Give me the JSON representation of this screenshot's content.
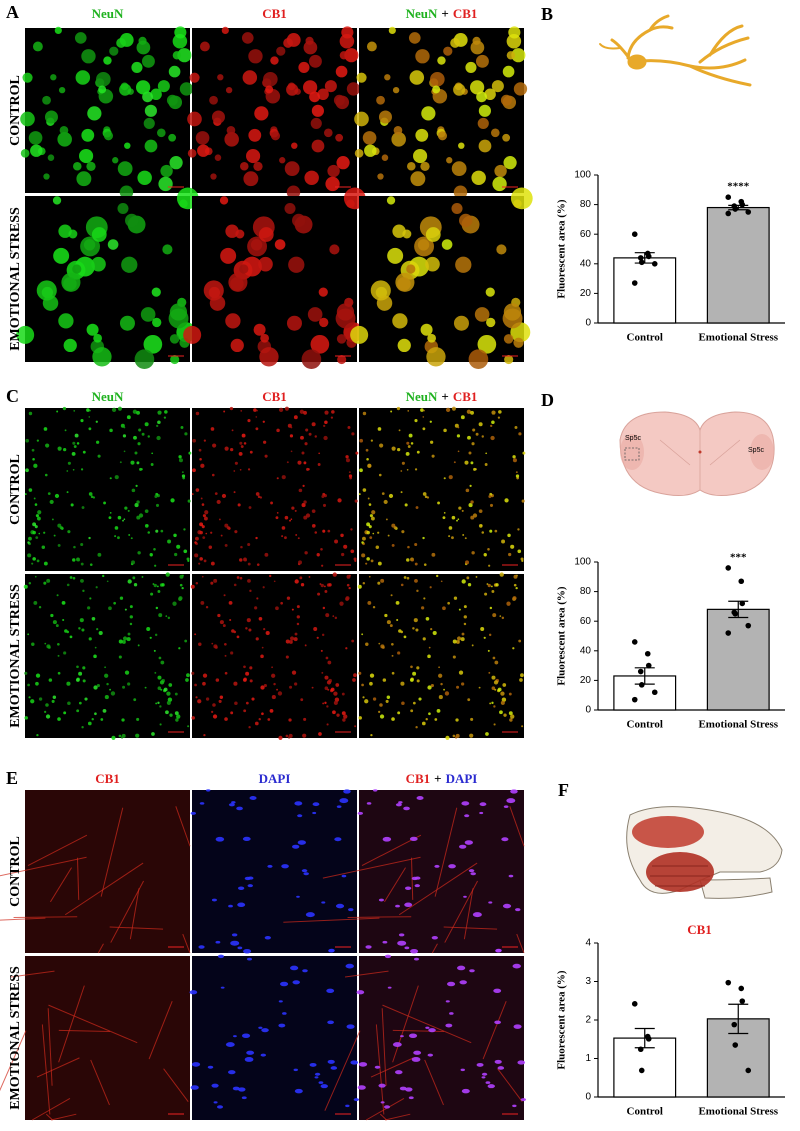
{
  "panel_labels": [
    "A",
    "B",
    "C",
    "D",
    "E",
    "F"
  ],
  "rows": [
    "CONTROL",
    "EMOTIONAL STRESS"
  ],
  "columns_neuron": [
    "NeuN",
    "CB1"
  ],
  "columns_muscle": [
    "CB1",
    "DAPI"
  ],
  "merge_sign": "+",
  "diagram_labels": [
    "Sp5c",
    "Sp5c"
  ],
  "chart_data": [
    {
      "type": "bar",
      "ylabel": "Fluorescent area (%)",
      "categories": [
        "Control",
        "Emotional Stress"
      ],
      "values": [
        44,
        78
      ],
      "errors": [
        3.5,
        1.5
      ],
      "points": [
        [
          60,
          47,
          45,
          44,
          41,
          40,
          27
        ],
        [
          85,
          82,
          80,
          79,
          77,
          75,
          74
        ]
      ],
      "colors": [
        "#ffffff",
        "#b3b3b3"
      ],
      "annotation": "****",
      "ylim": [
        0,
        100
      ],
      "yticks": [
        0,
        20,
        40,
        60,
        80,
        100
      ]
    },
    {
      "type": "bar",
      "ylabel": "Fluorescent area (%)",
      "categories": [
        "Control",
        "Emotional Stress"
      ],
      "values": [
        23,
        68
      ],
      "errors": [
        5.5,
        5.5
      ],
      "points": [
        [
          46,
          38,
          30,
          26,
          17,
          12,
          7
        ],
        [
          96,
          87,
          72,
          66,
          65,
          57,
          52
        ]
      ],
      "colors": [
        "#ffffff",
        "#b3b3b3"
      ],
      "annotation": "***",
      "ylim": [
        0,
        100
      ],
      "yticks": [
        0,
        20,
        40,
        60,
        80,
        100
      ]
    },
    {
      "type": "bar",
      "title": "CB1",
      "ylabel": "Fluorescent area (%)",
      "categories": [
        "Control",
        "Emotional Stress"
      ],
      "values": [
        1.53,
        2.03
      ],
      "errors": [
        0.25,
        0.38
      ],
      "points": [
        [
          2.42,
          1.57,
          1.51,
          1.24,
          0.69
        ],
        [
          2.97,
          2.82,
          2.49,
          1.88,
          1.35,
          0.69
        ]
      ],
      "colors": [
        "#ffffff",
        "#b3b3b3"
      ],
      "ylim": [
        0,
        4
      ],
      "yticks": [
        0,
        1,
        2,
        3,
        4
      ]
    }
  ]
}
